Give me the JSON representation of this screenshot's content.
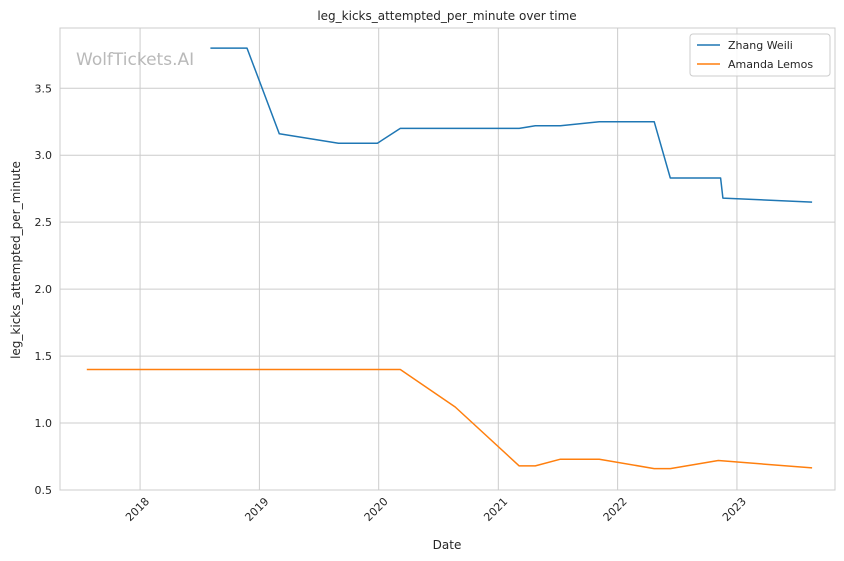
{
  "watermark": "WolfTickets.AI",
  "chart_data": {
    "type": "line",
    "title": "leg_kicks_attempted_per_minute over time",
    "xlabel": "Date",
    "ylabel": "leg_kicks_attempted_per_minute",
    "xlim": [
      "2017-05-01",
      "2023-10-28"
    ],
    "ylim": [
      0.5,
      3.95
    ],
    "x_ticks": [
      "2018",
      "2019",
      "2020",
      "2021",
      "2022",
      "2023"
    ],
    "y_ticks": [
      "0.5",
      "1.0",
      "1.5",
      "2.0",
      "2.5",
      "3.0",
      "3.5"
    ],
    "grid": true,
    "legend_position": "top-right",
    "series": [
      {
        "name": "Zhang Weili",
        "color": "#1f77b4",
        "points": [
          [
            "2018-08-04",
            3.8
          ],
          [
            "2018-11-24",
            3.8
          ],
          [
            "2019-03-03",
            3.16
          ],
          [
            "2019-08-31",
            3.09
          ],
          [
            "2019-12-28",
            3.09
          ],
          [
            "2020-03-07",
            3.2
          ],
          [
            "2021-03-06",
            3.2
          ],
          [
            "2021-04-24",
            3.22
          ],
          [
            "2021-07-10",
            3.22
          ],
          [
            "2021-11-06",
            3.25
          ],
          [
            "2022-04-23",
            3.25
          ],
          [
            "2022-06-11",
            2.83
          ],
          [
            "2022-11-12",
            2.83
          ],
          [
            "2022-11-19",
            2.68
          ],
          [
            "2023-08-19",
            2.65
          ]
        ]
      },
      {
        "name": "Amanda Lemos",
        "color": "#ff7f0e",
        "points": [
          [
            "2017-07-22",
            1.4
          ],
          [
            "2020-03-07",
            1.4
          ],
          [
            "2020-08-22",
            1.12
          ],
          [
            "2021-03-06",
            0.68
          ],
          [
            "2021-04-24",
            0.68
          ],
          [
            "2021-07-10",
            0.73
          ],
          [
            "2021-11-06",
            0.73
          ],
          [
            "2022-04-23",
            0.66
          ],
          [
            "2022-06-11",
            0.66
          ],
          [
            "2022-11-05",
            0.72
          ],
          [
            "2023-08-19",
            0.665
          ]
        ]
      }
    ]
  }
}
